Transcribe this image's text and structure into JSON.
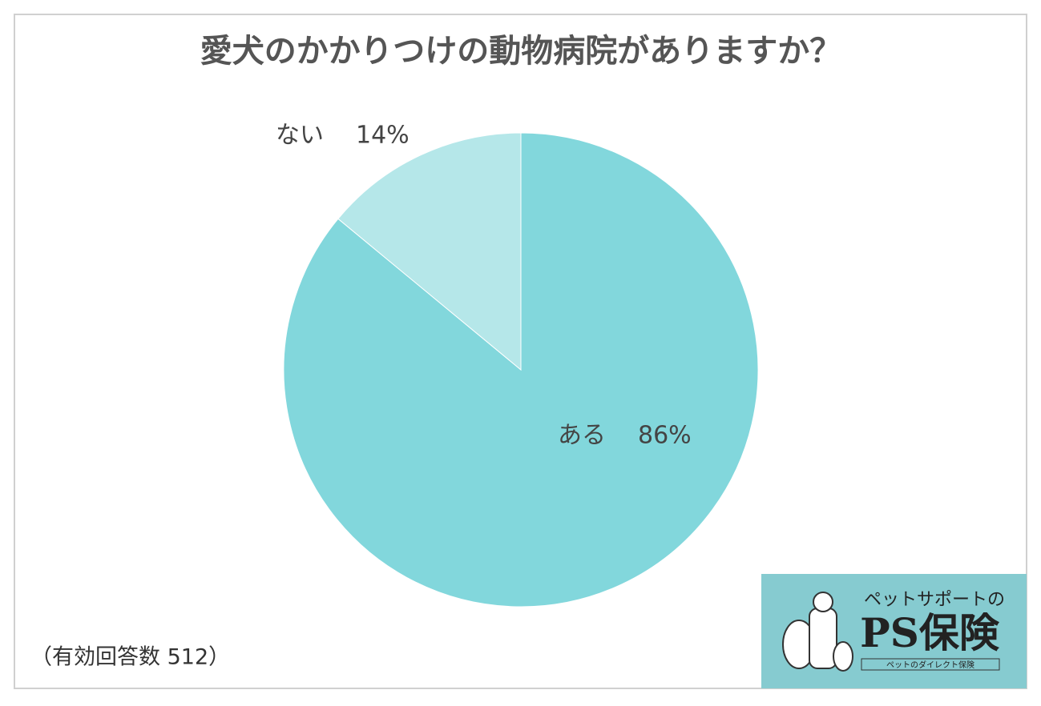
{
  "chart_data": {
    "type": "pie",
    "title": "愛犬のかかりつけの動物病院がありますか？",
    "categories": [
      "ある",
      "ない"
    ],
    "values": [
      86,
      14
    ],
    "value_labels": [
      "86%",
      "14%"
    ],
    "colors": [
      "#82d7dc",
      "#b5e7e9"
    ],
    "note": "（有効回答数 512）"
  },
  "logo": {
    "tagline": "ペットサポートの",
    "name": "PS保険",
    "subtitle": "ペットのダイレクト保険"
  }
}
